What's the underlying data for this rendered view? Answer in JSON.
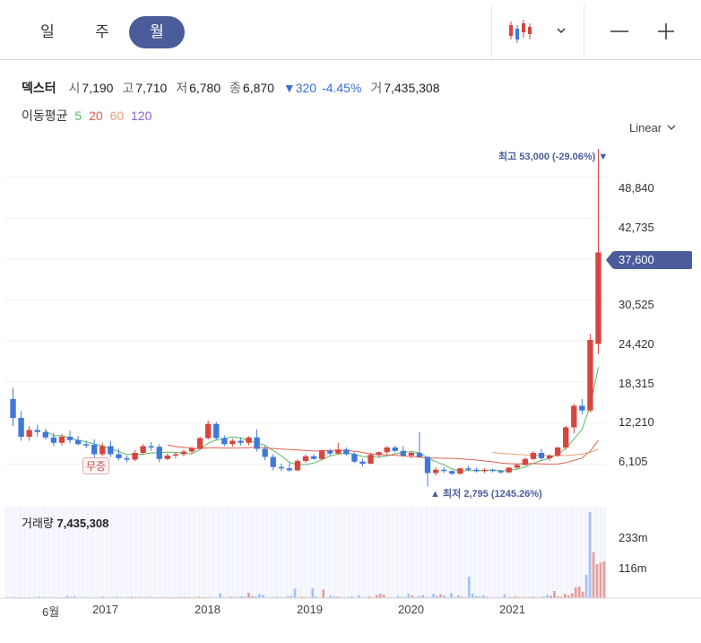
{
  "periods": [
    {
      "label": "일",
      "active": false
    },
    {
      "label": "주",
      "active": false
    },
    {
      "label": "월",
      "active": true
    }
  ],
  "stock": {
    "name": "덱스터",
    "open_key": "시",
    "open": "7,190",
    "high_key": "고",
    "high": "7,710",
    "low_key": "저",
    "low": "6,780",
    "close_key": "종",
    "close": "6,870",
    "change": "▼320",
    "change_pct": "-4.45%",
    "vol_key": "거",
    "volume": "7,435,308"
  },
  "ma": {
    "label": "이동평균",
    "p5": "5",
    "p20": "20",
    "p60": "60",
    "p120": "120"
  },
  "scale_label": "Linear",
  "y_ticks": [
    "48,840",
    "42,735",
    "30,525",
    "24,420",
    "18,315",
    "12,210",
    "6,105"
  ],
  "current_price": "37,600",
  "max_note": "최고 53,000 (-29.06%) ▼",
  "min_note": "▲ 최저 2,795 (1245.26%)",
  "muzeung": "무증",
  "volume_panel": {
    "title": "거래량",
    "value": "7,435,308",
    "ticks": [
      "233m",
      "116m"
    ]
  },
  "x_ticks": [
    "6월",
    "2017",
    "2018",
    "2019",
    "2020",
    "2021"
  ],
  "colors": {
    "up": "#d9443f",
    "down": "#3f78d9",
    "accent": "#4b5c9b",
    "ma5": "#5cb85c",
    "ma20": "#e06050",
    "ma60": "#e8a070",
    "ma120": "#8a64d0"
  },
  "chart_data": {
    "type": "candlestick",
    "y_unit": "KRW",
    "ylim": [
      3000,
      53000
    ],
    "candles": [
      [
        15800,
        17500,
        11800,
        13000
      ],
      [
        13000,
        14000,
        9600,
        10200
      ],
      [
        10200,
        11800,
        9600,
        11200
      ],
      [
        11200,
        12000,
        10200,
        10900
      ],
      [
        10900,
        11400,
        9800,
        10100
      ],
      [
        10100,
        10800,
        8800,
        9300
      ],
      [
        9300,
        10600,
        8900,
        10200
      ],
      [
        10200,
        11100,
        9200,
        9700
      ],
      [
        9700,
        10300,
        8900,
        9100
      ],
      [
        9100,
        9600,
        8500,
        9000
      ],
      [
        9000,
        9800,
        7000,
        7600
      ],
      [
        7600,
        9300,
        7300,
        8800
      ],
      [
        8800,
        9600,
        7200,
        7600
      ],
      [
        7600,
        8400,
        6700,
        7000
      ],
      [
        7000,
        7400,
        6400,
        6800
      ],
      [
        6800,
        8200,
        6600,
        7800
      ],
      [
        7800,
        9100,
        7500,
        8800
      ],
      [
        8800,
        9400,
        8100,
        8700
      ],
      [
        8700,
        9100,
        6400,
        6900
      ],
      [
        6900,
        7700,
        6700,
        7400
      ],
      [
        7400,
        7900,
        7000,
        7600
      ],
      [
        7600,
        8300,
        7300,
        8000
      ],
      [
        8000,
        8700,
        7700,
        8500
      ],
      [
        8500,
        10200,
        8300,
        10000
      ],
      [
        10000,
        12600,
        9800,
        12100
      ],
      [
        12100,
        12400,
        9700,
        10000
      ],
      [
        10000,
        10400,
        8800,
        9100
      ],
      [
        9100,
        9900,
        8700,
        9600
      ],
      [
        9600,
        10100,
        8900,
        9300
      ],
      [
        9300,
        10300,
        8900,
        10100
      ],
      [
        10100,
        11300,
        8000,
        8400
      ],
      [
        8400,
        8800,
        6700,
        7200
      ],
      [
        7200,
        7600,
        5200,
        5700
      ],
      [
        5700,
        6200,
        5100,
        5500
      ],
      [
        5500,
        6300,
        5000,
        5200
      ],
      [
        5200,
        6900,
        5100,
        6600
      ],
      [
        6600,
        7600,
        6300,
        7300
      ],
      [
        7300,
        7600,
        6800,
        6900
      ],
      [
        6900,
        8300,
        6700,
        8100
      ],
      [
        8100,
        8400,
        7400,
        7700
      ],
      [
        7700,
        9300,
        7500,
        8300
      ],
      [
        8300,
        8600,
        7400,
        7600
      ],
      [
        7600,
        7900,
        6300,
        6500
      ],
      [
        6500,
        6900,
        5800,
        6200
      ],
      [
        6200,
        7800,
        6100,
        7500
      ],
      [
        7500,
        8000,
        7100,
        7900
      ],
      [
        7900,
        8800,
        7600,
        8600
      ],
      [
        8600,
        8900,
        7900,
        8100
      ],
      [
        8100,
        8800,
        7200,
        7400
      ],
      [
        7400,
        8100,
        7000,
        7800
      ],
      [
        7800,
        10900,
        7400,
        7200
      ],
      [
        7200,
        7300,
        2795,
        4800
      ],
      [
        4800,
        5700,
        4400,
        5300
      ],
      [
        5300,
        5700,
        4800,
        5100
      ],
      [
        5100,
        5200,
        4500,
        4700
      ],
      [
        4700,
        5600,
        4600,
        5500
      ],
      [
        5500,
        5900,
        5100,
        5300
      ],
      [
        5300,
        5600,
        4900,
        5100
      ],
      [
        5100,
        5500,
        4800,
        5300
      ],
      [
        5300,
        5400,
        4900,
        5100
      ],
      [
        5100,
        5300,
        4700,
        4900
      ],
      [
        4900,
        5700,
        4800,
        5600
      ],
      [
        5600,
        6200,
        5400,
        6000
      ],
      [
        6000,
        7100,
        5900,
        6900
      ],
      [
        6900,
        8100,
        6700,
        7800
      ],
      [
        7800,
        8400,
        6700,
        7000
      ],
      [
        7000,
        7600,
        6600,
        7400
      ],
      [
        7400,
        8700,
        7200,
        8600
      ],
      [
        8600,
        11800,
        8300,
        11600
      ],
      [
        11600,
        15100,
        10700,
        14800
      ],
      [
        14800,
        15800,
        13500,
        14100
      ],
      [
        14100,
        25500,
        13800,
        24600
      ],
      [
        24000,
        53000,
        22500,
        37600
      ]
    ],
    "volume_max_m": 250,
    "volumes_m": [
      3,
      2,
      2,
      1,
      1,
      1,
      1,
      1,
      1,
      1,
      1,
      1,
      1,
      1,
      3,
      1,
      1,
      1,
      1,
      1,
      1,
      1,
      1,
      1,
      3,
      6,
      5,
      4,
      3,
      4,
      5,
      9,
      18,
      2,
      2,
      1,
      1,
      1,
      1,
      1,
      1,
      1,
      1,
      1,
      1,
      1,
      1,
      2,
      4,
      7,
      28,
      14,
      8,
      3,
      2,
      1,
      1,
      1,
      1,
      1,
      1,
      1,
      1,
      1,
      18,
      4,
      2,
      2,
      2,
      1,
      1,
      1,
      1,
      1,
      1,
      1,
      1,
      1,
      1,
      1,
      1,
      1,
      2,
      3,
      4,
      2,
      1,
      1,
      1,
      1,
      1,
      1,
      1,
      1,
      1,
      1,
      1,
      1,
      1,
      1,
      1,
      1,
      1,
      1,
      1,
      1,
      1,
      1,
      1,
      1,
      1,
      1,
      1,
      1,
      1,
      1,
      1,
      1,
      1,
      1,
      1,
      2,
      1,
      1,
      1,
      1,
      1,
      1,
      1,
      1,
      1,
      1,
      1,
      1,
      1,
      1,
      1,
      1,
      1,
      2,
      3,
      4,
      3,
      2,
      1,
      1,
      1,
      1,
      1,
      1,
      1,
      1,
      60,
      12,
      6,
      5,
      4,
      3,
      2,
      2,
      1,
      1,
      1,
      1,
      1,
      1,
      1,
      1,
      1,
      1,
      1,
      1,
      1,
      3,
      5,
      3,
      1,
      1,
      1,
      1,
      1,
      1,
      1,
      2,
      5,
      4,
      2,
      1,
      1,
      1,
      1,
      1,
      1,
      1,
      1,
      2,
      6,
      3,
      2,
      1,
      1,
      1,
      1,
      1,
      1,
      1,
      1,
      1,
      1,
      1,
      1,
      1,
      4,
      4,
      1,
      2,
      1,
      1,
      4,
      1,
      5,
      1,
      1,
      1,
      1,
      1,
      1,
      1,
      3,
      3,
      1,
      1,
      3,
      1,
      1,
      1,
      1,
      1,
      1,
      14,
      2,
      2,
      1,
      1,
      1,
      1,
      1,
      1,
      1,
      1,
      1,
      1,
      1,
      7,
      4,
      2,
      2,
      1,
      1,
      1,
      1,
      1,
      1,
      1,
      1,
      1,
      1,
      1,
      1,
      1,
      1,
      1,
      1,
      1,
      1,
      1,
      9,
      4,
      4,
      1,
      1,
      1,
      1,
      1,
      1,
      1,
      1,
      1,
      1,
      1,
      1,
      1,
      1,
      3,
      1,
      1,
      1,
      1,
      1,
      1,
      1,
      1,
      1,
      1,
      1,
      1,
      1,
      1,
      1,
      1,
      1,
      1,
      1,
      1,
      1,
      1,
      1,
      1,
      1,
      4,
      1,
      1,
      1,
      1,
      1,
      1,
      1,
      1,
      1,
      1,
      1,
      1,
      1,
      1,
      1,
      1,
      1,
      1,
      1,
      1,
      1,
      1,
      1,
      1,
      1,
      1,
      1,
      1,
      1,
      1,
      1,
      1,
      1,
      1,
      1,
      1,
      1,
      1,
      1,
      1,
      1,
      1,
      1,
      1,
      1,
      1,
      1,
      1,
      1,
      1
    ],
    "volumes_monthly_m": [
      3,
      1,
      3,
      2,
      2,
      2,
      2,
      2,
      3,
      4,
      2,
      3,
      3,
      2,
      2,
      2,
      1,
      6,
      4,
      6,
      2,
      3,
      3,
      2,
      2,
      2,
      3,
      4,
      2,
      3,
      3,
      4,
      2,
      2,
      3,
      4,
      3,
      3,
      2,
      2,
      4,
      3,
      3,
      2,
      3,
      2,
      2,
      2,
      3,
      3,
      3,
      2,
      2,
      3,
      4,
      2,
      2,
      3,
      2,
      2,
      14,
      3,
      2,
      4,
      3,
      3,
      5,
      4,
      15,
      6,
      5,
      12,
      9,
      2,
      2,
      2,
      4,
      3,
      2,
      6,
      6,
      27,
      3,
      4,
      3,
      3,
      28,
      5,
      2,
      24,
      2,
      7,
      5,
      4,
      3,
      2,
      3,
      5,
      2,
      8,
      1,
      3,
      5,
      2,
      9,
      12,
      10,
      2,
      3,
      2,
      6,
      3,
      4,
      12,
      8,
      3,
      6,
      9,
      4,
      3,
      12,
      6,
      11,
      8,
      3,
      14,
      3,
      8,
      4,
      3,
      60,
      12,
      6,
      5,
      8,
      4,
      2,
      3,
      3,
      3,
      11,
      3,
      3,
      5,
      3,
      2,
      3,
      3,
      4,
      2,
      3,
      5,
      9,
      7,
      20,
      5,
      4,
      12,
      8,
      14,
      30,
      33,
      18,
      65,
      240,
      128,
      95,
      99,
      103
    ],
    "volumes": [
      3,
      3,
      3,
      3,
      3,
      3,
      3,
      3,
      3,
      3,
      3,
      3,
      3,
      3,
      3,
      3,
      3,
      3,
      3,
      3,
      3,
      3,
      3,
      3,
      3,
      6,
      5,
      4,
      3,
      4,
      5,
      9,
      18,
      3,
      3,
      3,
      3,
      3,
      3,
      3,
      3,
      3,
      3,
      3,
      3,
      3,
      3,
      3,
      4,
      7,
      28,
      14,
      8,
      3,
      3,
      3,
      3,
      3,
      3,
      3,
      3,
      3,
      3,
      3,
      18,
      4,
      3,
      3,
      3,
      3,
      3,
      3,
      3,
      3,
      3,
      3,
      3,
      3,
      3,
      3,
      3,
      3,
      3,
      3,
      4,
      3,
      3,
      3,
      3,
      3,
      3,
      3,
      3,
      3,
      3,
      3,
      3,
      3,
      3,
      3
    ]
  }
}
